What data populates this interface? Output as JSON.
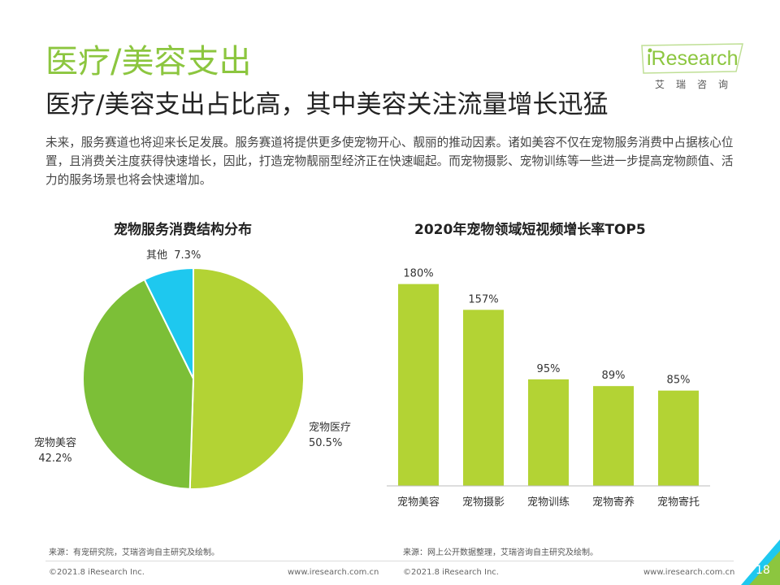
{
  "brand": {
    "name": "iResearch",
    "cn_name": "艾瑞咨询",
    "colors": {
      "green": "#8cc63f",
      "dark_green": "#6aaa2a",
      "cyan": "#1ec8ef",
      "lime": "#b3d334"
    }
  },
  "header": {
    "title": "医疗/美容支出",
    "subtitle": "医疗/美容支出占比高，其中美容关注流量增长迅猛",
    "description": "未来，服务赛道也将迎来长足发展。服务赛道将提供更多使宠物开心、靓丽的推动因素。诸如美容不仅在宠物服务消费中占据核心位置，且消费关注度获得快速增长，因此，打造宠物靓丽型经济正在快速崛起。而宠物摄影、宠物训练等一些进一步提高宠物颜值、活力的服务场景也将会快速增加。"
  },
  "chart_data": [
    {
      "type": "pie",
      "title": "宠物服务消费结构分布",
      "unit": "%",
      "slices": [
        {
          "label": "宠物医疗",
          "value": 50.5,
          "display": "50.5%",
          "color": "#b3d334"
        },
        {
          "label": "宠物美容",
          "value": 42.2,
          "display": "42.2%",
          "color": "#7cbf37"
        },
        {
          "label": "其他",
          "value": 7.3,
          "display": "7.3%",
          "color": "#1ec8ef"
        }
      ]
    },
    {
      "type": "bar",
      "title": "2020年宠物领域短视频增长率TOP5",
      "categories": [
        "宠物美容",
        "宠物摄影",
        "宠物训练",
        "宠物寄养",
        "宠物寄托"
      ],
      "values": [
        180,
        157,
        95,
        89,
        85
      ],
      "value_labels": [
        "180%",
        "157%",
        "95%",
        "89%",
        "85%"
      ],
      "ylim": [
        0,
        200
      ],
      "xlabel": "",
      "ylabel": "",
      "color": "#b3d334"
    }
  ],
  "sources": {
    "left": "来源：有宠研究院，艾瑞咨询自主研究及绘制。",
    "right": "来源：网上公开数据整理，艾瑞咨询自主研究及绘制。"
  },
  "footer": {
    "copyright_left": "©2021.8 iResearch Inc.",
    "url_left": "www.iresearch.com.cn",
    "copyright_right": "©2021.8 iResearch Inc.",
    "url_right": "www.iresearch.com.cn",
    "page_number": "18"
  }
}
